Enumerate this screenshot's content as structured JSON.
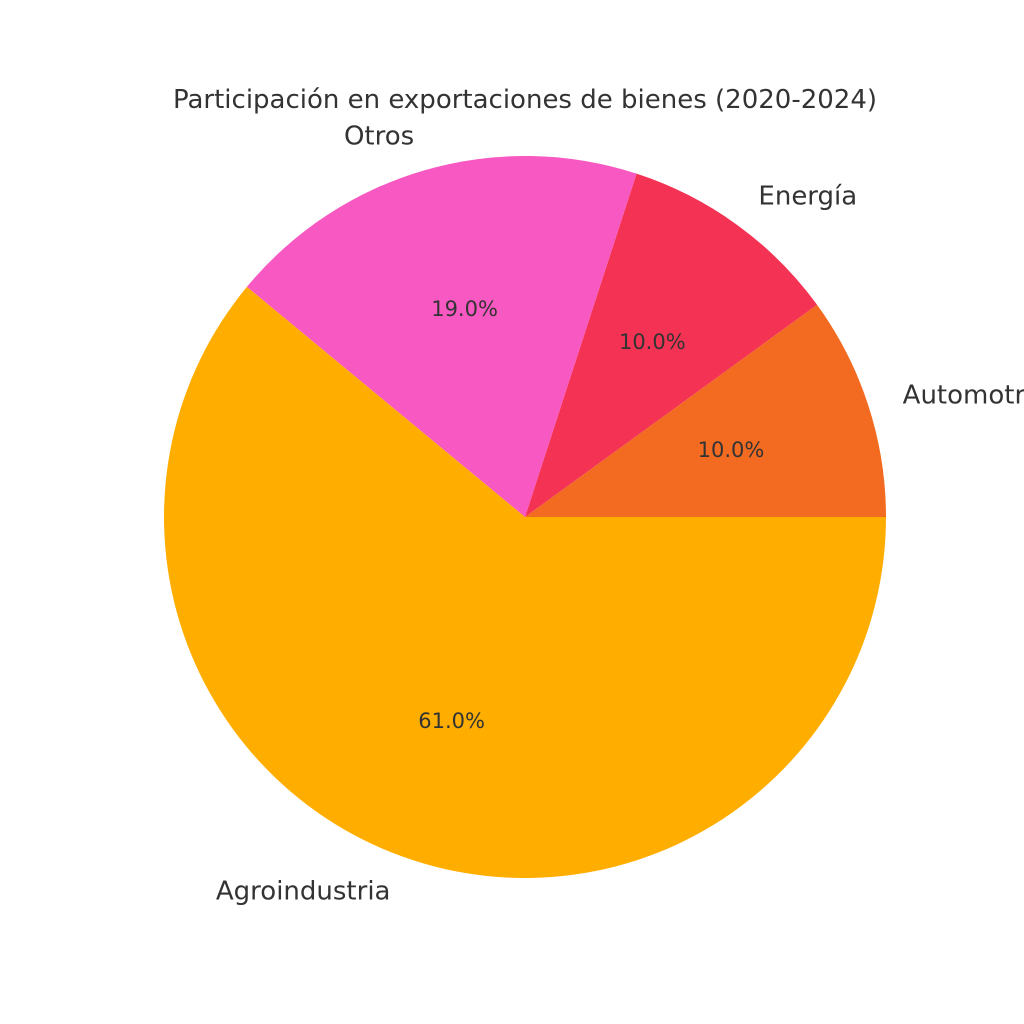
{
  "chart_data": {
    "type": "pie",
    "title": "Participación en exportaciones de bienes (2020-2024)",
    "slices": [
      {
        "label": "Automotriz",
        "value": 10.0,
        "pct_label": "10.0%",
        "color": "#f26b21"
      },
      {
        "label": "Energía",
        "value": 10.0,
        "pct_label": "10.0%",
        "color": "#f43254"
      },
      {
        "label": "Otros",
        "value": 19.0,
        "pct_label": "19.0%",
        "color": "#f758c1"
      },
      {
        "label": "Agroindustria",
        "value": 61.0,
        "pct_label": "61.0%",
        "color": "#ffae00"
      }
    ],
    "start_angle_deg": 0,
    "direction": "counterclockwise",
    "legend": "none"
  }
}
